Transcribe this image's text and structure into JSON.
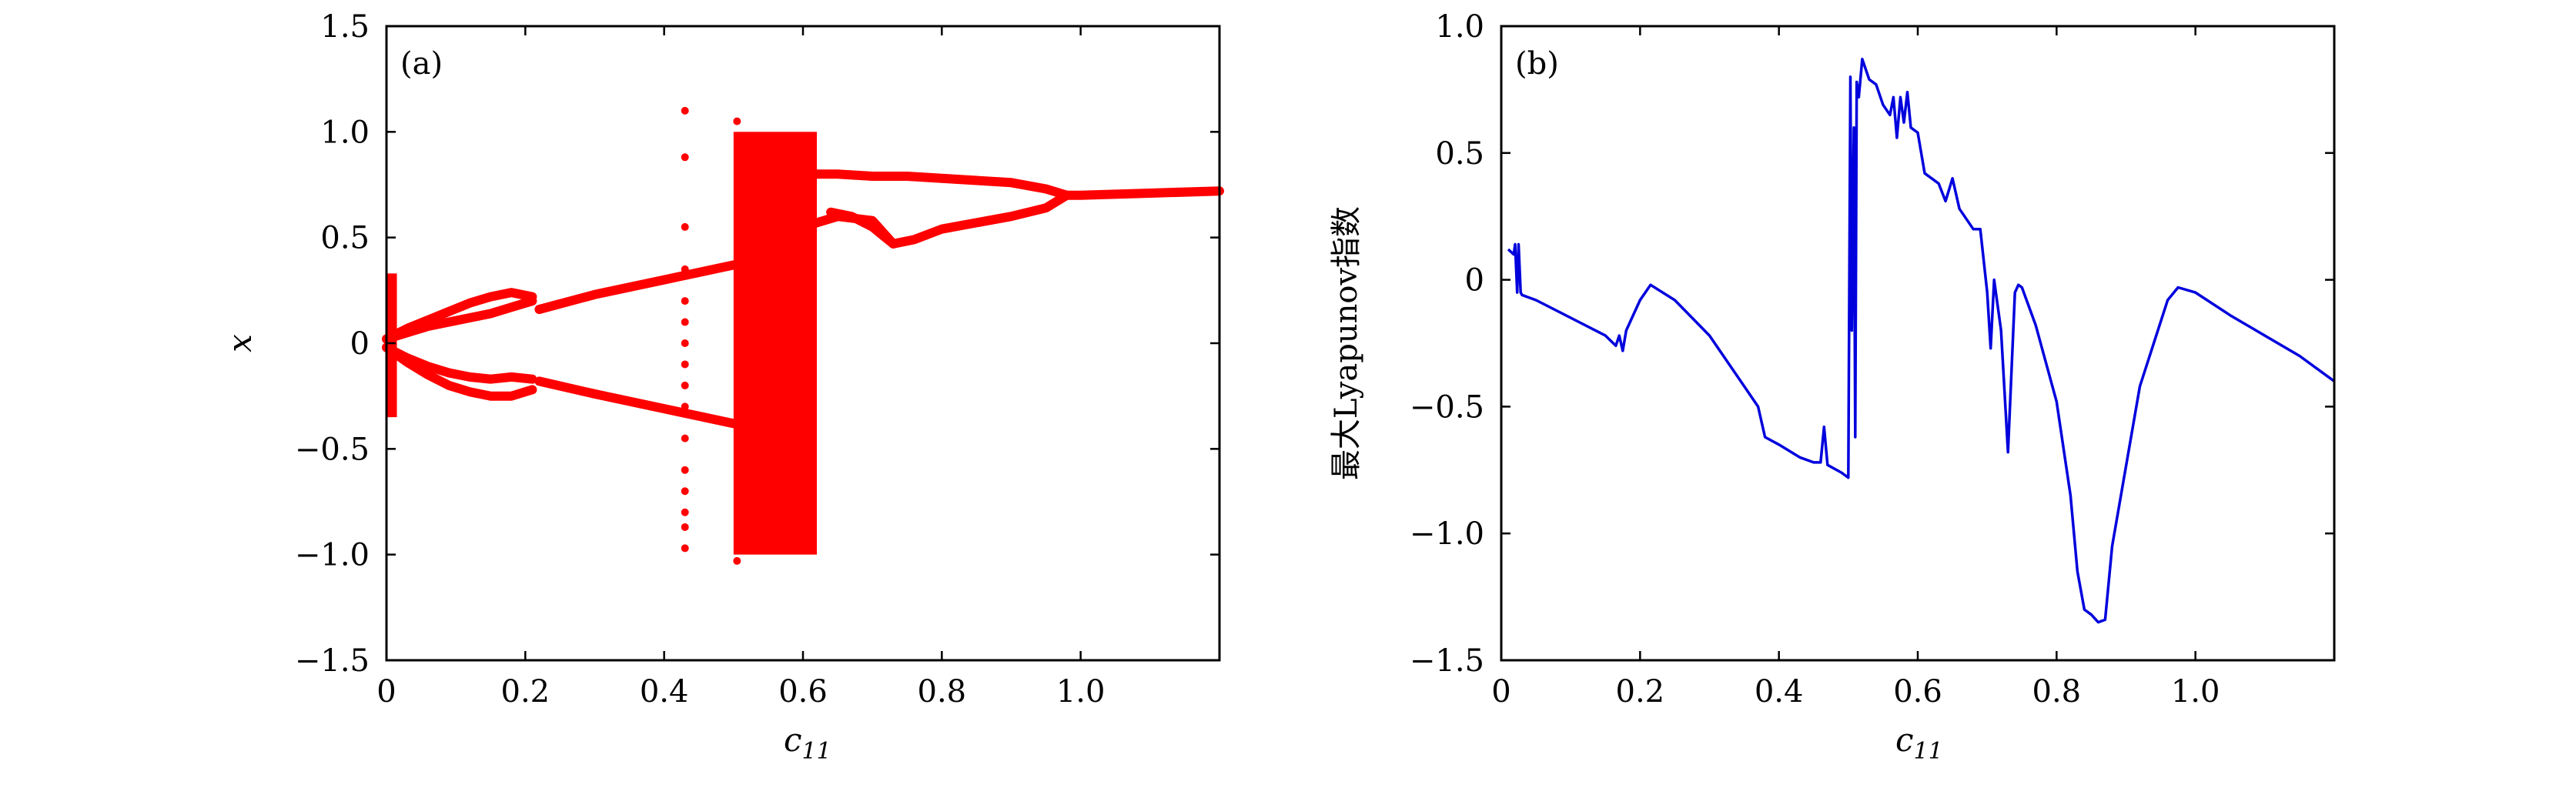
{
  "chart_data": [
    {
      "type": "scatter",
      "panel_label": "(a)",
      "xlabel_main": "c",
      "xlabel_sub": "11",
      "ylabel": "x",
      "xlim": [
        0,
        1.2
      ],
      "ylim": [
        -1.5,
        1.5
      ],
      "x_ticks": [
        0,
        0.2,
        0.4,
        0.6,
        0.8,
        1.0
      ],
      "x_tick_labels": [
        "0",
        "0.2",
        "0.4",
        "0.6",
        "0.8",
        "1.0"
      ],
      "y_ticks": [
        1.5,
        1.0,
        0.5,
        0,
        -0.5,
        -1.0,
        -1.5
      ],
      "y_tick_labels": [
        "1.5",
        "1.0",
        "0.5",
        "0",
        "−0.5",
        "−1.0",
        "−1.5"
      ],
      "color": "#ff0000",
      "branches": [
        {
          "x": [
            0.0,
            0.03,
            0.06,
            0.09,
            0.12,
            0.15,
            0.18,
            0.21
          ],
          "y": [
            0.02,
            0.07,
            0.11,
            0.15,
            0.19,
            0.22,
            0.24,
            0.22
          ]
        },
        {
          "x": [
            0.0,
            0.03,
            0.06,
            0.09,
            0.12,
            0.15,
            0.18,
            0.21
          ],
          "y": [
            0.02,
            0.05,
            0.08,
            0.1,
            0.12,
            0.14,
            0.17,
            0.2
          ]
        },
        {
          "x": [
            0.0,
            0.03,
            0.06,
            0.09,
            0.12,
            0.15,
            0.18,
            0.21
          ],
          "y": [
            -0.02,
            -0.07,
            -0.11,
            -0.14,
            -0.16,
            -0.17,
            -0.16,
            -0.17
          ]
        },
        {
          "x": [
            0.0,
            0.03,
            0.06,
            0.09,
            0.12,
            0.15,
            0.18,
            0.21
          ],
          "y": [
            -0.02,
            -0.09,
            -0.15,
            -0.2,
            -0.23,
            -0.25,
            -0.25,
            -0.22
          ]
        },
        {
          "x": [
            0.22,
            0.3,
            0.4,
            0.5
          ],
          "y": [
            0.16,
            0.23,
            0.3,
            0.37
          ]
        },
        {
          "x": [
            0.22,
            0.3,
            0.4,
            0.5
          ],
          "y": [
            -0.18,
            -0.24,
            -0.31,
            -0.38
          ]
        },
        {
          "x": [
            0.6,
            0.65,
            0.7,
            0.75,
            0.8,
            0.85,
            0.9,
            0.95,
            0.98,
            1.0,
            1.1,
            1.2
          ],
          "y": [
            0.8,
            0.8,
            0.79,
            0.79,
            0.78,
            0.77,
            0.76,
            0.73,
            0.7,
            0.7,
            0.71,
            0.72
          ]
        },
        {
          "x": [
            0.6,
            0.65,
            0.7,
            0.73,
            0.76,
            0.8,
            0.85,
            0.9,
            0.95,
            0.98
          ],
          "y": [
            0.55,
            0.6,
            0.58,
            0.47,
            0.49,
            0.54,
            0.57,
            0.6,
            0.64,
            0.7
          ]
        },
        {
          "x": [
            0.64,
            0.67,
            0.7,
            0.73
          ],
          "y": [
            0.62,
            0.6,
            0.55,
            0.47
          ]
        }
      ],
      "bands": [
        {
          "x": [
            0.0,
            0.015
          ],
          "ymin": -0.35,
          "ymax": 0.33
        },
        {
          "x": [
            0.5,
            0.62
          ],
          "ymin": -1.0,
          "ymax": 1.0
        }
      ],
      "points": [
        {
          "x": 0.43,
          "y": [
            1.1,
            0.88,
            0.55,
            0.35,
            0.2,
            0.1,
            0.0,
            -0.1,
            -0.2,
            -0.3,
            -0.45,
            -0.6,
            -0.7,
            -0.8,
            -0.87,
            -0.97
          ]
        },
        {
          "x": 0.505,
          "y": [
            1.05,
            -1.03
          ]
        }
      ]
    },
    {
      "type": "line",
      "panel_label": "(b)",
      "xlabel_main": "c",
      "xlabel_sub": "11",
      "ylabel": "最大Lyapunov指数",
      "xlim": [
        0,
        1.2
      ],
      "ylim": [
        -1.5,
        1.0
      ],
      "x_ticks": [
        0,
        0.2,
        0.4,
        0.6,
        0.8,
        1.0
      ],
      "x_tick_labels": [
        "0",
        "0.2",
        "0.4",
        "0.6",
        "0.8",
        "1.0"
      ],
      "y_ticks": [
        1.0,
        0.5,
        0,
        -0.5,
        -1.0,
        -1.5
      ],
      "y_tick_labels": [
        "1.0",
        "0.5",
        "0",
        "−0.5",
        "−1.0",
        "−1.5"
      ],
      "color": "#0000dd",
      "x": [
        0.01,
        0.018,
        0.02,
        0.023,
        0.025,
        0.028,
        0.03,
        0.05,
        0.1,
        0.15,
        0.165,
        0.17,
        0.175,
        0.18,
        0.2,
        0.215,
        0.25,
        0.3,
        0.35,
        0.37,
        0.38,
        0.4,
        0.43,
        0.45,
        0.46,
        0.465,
        0.47,
        0.49,
        0.5,
        0.503,
        0.505,
        0.508,
        0.51,
        0.512,
        0.515,
        0.52,
        0.53,
        0.54,
        0.55,
        0.56,
        0.565,
        0.57,
        0.575,
        0.58,
        0.585,
        0.59,
        0.6,
        0.61,
        0.63,
        0.64,
        0.65,
        0.66,
        0.68,
        0.69,
        0.7,
        0.705,
        0.71,
        0.72,
        0.73,
        0.74,
        0.745,
        0.75,
        0.77,
        0.8,
        0.82,
        0.83,
        0.84,
        0.85,
        0.86,
        0.87,
        0.88,
        0.92,
        0.96,
        0.975,
        1.0,
        1.05,
        1.1,
        1.15,
        1.2
      ],
      "y": [
        0.12,
        0.1,
        0.14,
        -0.05,
        0.14,
        -0.05,
        -0.06,
        -0.08,
        -0.15,
        -0.22,
        -0.26,
        -0.22,
        -0.28,
        -0.2,
        -0.08,
        -0.02,
        -0.08,
        -0.22,
        -0.42,
        -0.5,
        -0.62,
        -0.65,
        -0.7,
        -0.72,
        -0.72,
        -0.58,
        -0.73,
        -0.76,
        -0.78,
        0.8,
        -0.2,
        0.6,
        -0.62,
        0.78,
        0.72,
        0.87,
        0.79,
        0.77,
        0.69,
        0.65,
        0.72,
        0.56,
        0.72,
        0.62,
        0.74,
        0.6,
        0.58,
        0.42,
        0.38,
        0.31,
        0.4,
        0.28,
        0.2,
        0.2,
        -0.05,
        -0.27,
        0.0,
        -0.2,
        -0.68,
        -0.05,
        -0.02,
        -0.03,
        -0.18,
        -0.48,
        -0.85,
        -1.15,
        -1.3,
        -1.32,
        -1.35,
        -1.34,
        -1.05,
        -0.42,
        -0.08,
        -0.03,
        -0.05,
        -0.14,
        -0.22,
        -0.3,
        -0.4
      ]
    }
  ]
}
